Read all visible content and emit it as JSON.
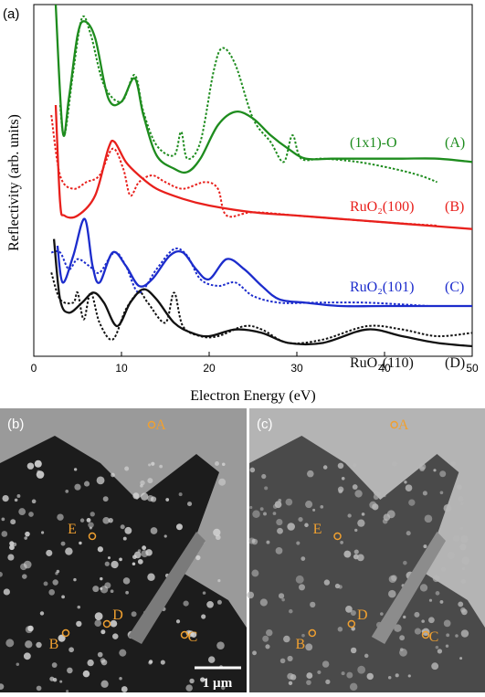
{
  "chart_data": {
    "type": "line",
    "panel_label": "(a)",
    "xlabel": "Electron Energy (eV)",
    "ylabel": "Reflectivity (arb. units)",
    "xlim": [
      0,
      50
    ],
    "xticks": [
      0,
      10,
      20,
      30,
      40,
      50
    ],
    "ylim": [
      -0.5,
      10
    ],
    "curve_labels": [
      {
        "text": "(1x1)-O",
        "tag": "(A)",
        "color": "#1e8c1e"
      },
      {
        "text": "RuO₂(100)",
        "tag": "(B)",
        "color": "#e8201c"
      },
      {
        "text": "RuO₂(101)",
        "tag": "(C)",
        "color": "#1c2ccc"
      },
      {
        "text": "RuO₂(110)",
        "tag": "(D)",
        "color": "#111111"
      }
    ],
    "series": [
      {
        "color": "#1e8c1e",
        "style": "solid",
        "x": [
          2.5,
          3.3,
          4,
          5,
          5.8,
          7,
          8.5,
          10,
          11.5,
          12.5,
          14,
          16,
          17.5,
          19,
          21,
          23,
          25,
          27,
          29,
          31,
          34,
          38,
          42,
          46,
          50
        ],
        "values": [
          10,
          6.2,
          7.2,
          9.1,
          9.5,
          9.0,
          7.2,
          7.1,
          7.8,
          6.7,
          5.5,
          5.1,
          5.0,
          5.4,
          6.4,
          6.8,
          6.6,
          6.1,
          5.7,
          5.4,
          5.4,
          5.4,
          5.4,
          5.4,
          5.3
        ]
      },
      {
        "color": "#1e8c1e",
        "style": "dotted",
        "x": [
          3,
          3.5,
          4.5,
          5.5,
          6.5,
          8,
          10,
          11.5,
          12.5,
          14,
          16,
          16.8,
          17.5,
          19,
          20.5,
          21.5,
          23,
          25,
          27,
          28.5,
          29.5,
          30.5,
          33,
          37,
          41,
          44,
          46
        ],
        "values": [
          7.0,
          6.1,
          8.0,
          9.6,
          9.1,
          7.6,
          7.1,
          7.9,
          6.8,
          5.8,
          5.5,
          6.2,
          5.4,
          5.9,
          8.0,
          8.7,
          8.2,
          6.6,
          5.9,
          5.3,
          6.1,
          5.4,
          5.4,
          5.3,
          5.1,
          4.9,
          4.7
        ]
      },
      {
        "color": "#e8201c",
        "style": "solid",
        "x": [
          2.5,
          3,
          3.5,
          5,
          7,
          8.5,
          9.2,
          10.5,
          12,
          14,
          17,
          20,
          25,
          30,
          35,
          40,
          45,
          50
        ],
        "values": [
          7.0,
          4.1,
          3.7,
          3.7,
          4.3,
          5.7,
          5.9,
          5.3,
          4.9,
          4.5,
          4.2,
          4.0,
          3.8,
          3.7,
          3.6,
          3.5,
          3.4,
          3.3
        ]
      },
      {
        "color": "#e8201c",
        "style": "dotted",
        "x": [
          2,
          3,
          4.5,
          6,
          7.5,
          9,
          10.2,
          11,
          12,
          13.5,
          15,
          17,
          19.5,
          21,
          22,
          25,
          30,
          35,
          40,
          46
        ],
        "values": [
          6.7,
          4.9,
          4.5,
          4.7,
          4.9,
          5.7,
          5.1,
          4.3,
          4.7,
          4.9,
          4.7,
          4.5,
          4.7,
          4.5,
          3.7,
          3.8,
          3.7,
          3.6,
          3.5,
          3.4
        ]
      },
      {
        "color": "#1c2ccc",
        "style": "solid",
        "x": [
          2.7,
          3.3,
          4.5,
          5.8,
          6.7,
          7.5,
          9,
          10.5,
          12,
          13.5,
          15.5,
          17,
          18.5,
          20,
          22,
          24,
          26,
          28,
          31,
          35,
          40,
          50
        ],
        "values": [
          2.8,
          1.7,
          2.5,
          3.6,
          2.2,
          1.7,
          2.6,
          2.2,
          1.6,
          1.8,
          2.5,
          2.6,
          2.1,
          1.8,
          2.4,
          2.1,
          1.6,
          1.2,
          1.1,
          1.0,
          1.0,
          1.0
        ]
      },
      {
        "color": "#1c2ccc",
        "style": "dotted",
        "x": [
          2,
          3,
          4,
          5,
          6.3,
          7.5,
          9.2,
          10.5,
          12,
          14,
          16,
          17.5,
          19,
          21,
          23,
          25,
          28,
          32,
          38,
          45
        ],
        "values": [
          2.6,
          2.6,
          2.1,
          2.4,
          2.2,
          2.0,
          2.6,
          2.2,
          1.4,
          2.1,
          2.7,
          2.5,
          1.8,
          1.6,
          1.7,
          1.3,
          1.1,
          1.1,
          1.1,
          1.0
        ]
      },
      {
        "color": "#111111",
        "style": "solid",
        "x": [
          2.3,
          3,
          4,
          5.5,
          6.8,
          8,
          9.5,
          11,
          12.5,
          14,
          16,
          18,
          20,
          23,
          26,
          29,
          33,
          38,
          42,
          46,
          50
        ],
        "values": [
          3.0,
          1.2,
          0.8,
          1.1,
          1.4,
          1.1,
          0.4,
          1.1,
          1.5,
          1.2,
          0.5,
          0.2,
          0.1,
          0.3,
          0.2,
          -0.1,
          -0.1,
          0.3,
          0.1,
          -0.1,
          -0.2
        ]
      },
      {
        "color": "#111111",
        "style": "dotted",
        "x": [
          2,
          3,
          4.5,
          5,
          5.7,
          6.5,
          7.5,
          9,
          10.5,
          12,
          13,
          15,
          16,
          17,
          19,
          21,
          24,
          26,
          29,
          33,
          38,
          42,
          46,
          50
        ],
        "values": [
          2.0,
          1.2,
          1.1,
          1.4,
          0.6,
          1.4,
          0.5,
          0.0,
          0.9,
          1.4,
          1.1,
          0.5,
          1.4,
          0.4,
          0.1,
          0.1,
          0.4,
          0.3,
          -0.1,
          0.0,
          0.4,
          0.3,
          0.1,
          0.2
        ]
      }
    ]
  },
  "images": [
    {
      "panel_label": "(b)",
      "points": [
        "A",
        "E",
        "D",
        "B",
        "C"
      ],
      "scale_bar": "1 µm"
    },
    {
      "panel_label": "(c)",
      "points": [
        "A",
        "E",
        "D",
        "B",
        "C"
      ]
    }
  ]
}
